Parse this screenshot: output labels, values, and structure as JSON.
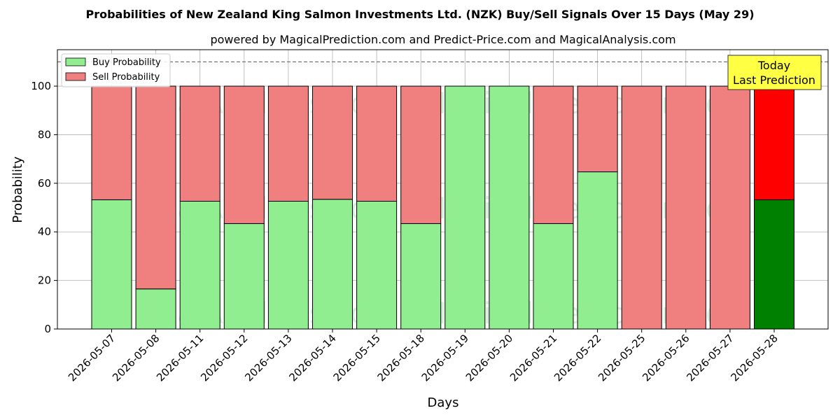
{
  "chart_data": {
    "type": "bar",
    "stacked": true,
    "title": "Probabilities of New Zealand King Salmon Investments Ltd. (NZK) Buy/Sell Signals Over 15 Days (May 29)",
    "subtitle": "powered by MagicalPrediction.com and Predict-Price.com and MagicalAnalysis.com",
    "xlabel": "Days",
    "ylabel": "Probability",
    "ylim": [
      0,
      115
    ],
    "yticks": [
      0,
      20,
      40,
      60,
      80,
      100
    ],
    "reference_line": 110,
    "grid": true,
    "legend_placement": "top-left",
    "categories": [
      "2026-05-07",
      "2026-05-08",
      "2026-05-11",
      "2026-05-12",
      "2026-05-13",
      "2026-05-14",
      "2026-05-15",
      "2026-05-18",
      "2026-05-19",
      "2026-05-20",
      "2026-05-21",
      "2026-05-22",
      "2026-05-25",
      "2026-05-26",
      "2026-05-27",
      "2026-05-28"
    ],
    "series": [
      {
        "name": "Buy Probability",
        "color": "#90ee90",
        "last_color": "#008000",
        "values": [
          53.2,
          16.5,
          52.6,
          43.4,
          52.6,
          53.4,
          52.6,
          43.4,
          100,
          100,
          43.4,
          64.7,
          0,
          0,
          0,
          53.2
        ]
      },
      {
        "name": "Sell Probability",
        "color": "#f08080",
        "last_color": "#ff0000",
        "values": [
          46.8,
          83.5,
          47.4,
          56.6,
          47.4,
          46.6,
          47.4,
          56.6,
          0,
          0,
          56.6,
          35.3,
          100,
          100,
          100,
          46.8
        ]
      }
    ],
    "annotation": {
      "line1": "Today",
      "line2": "Last Prediction",
      "background": "#ffff44"
    },
    "watermarks": [
      "MagicalAnalysis.com",
      "MagicalPrediction.com"
    ]
  }
}
